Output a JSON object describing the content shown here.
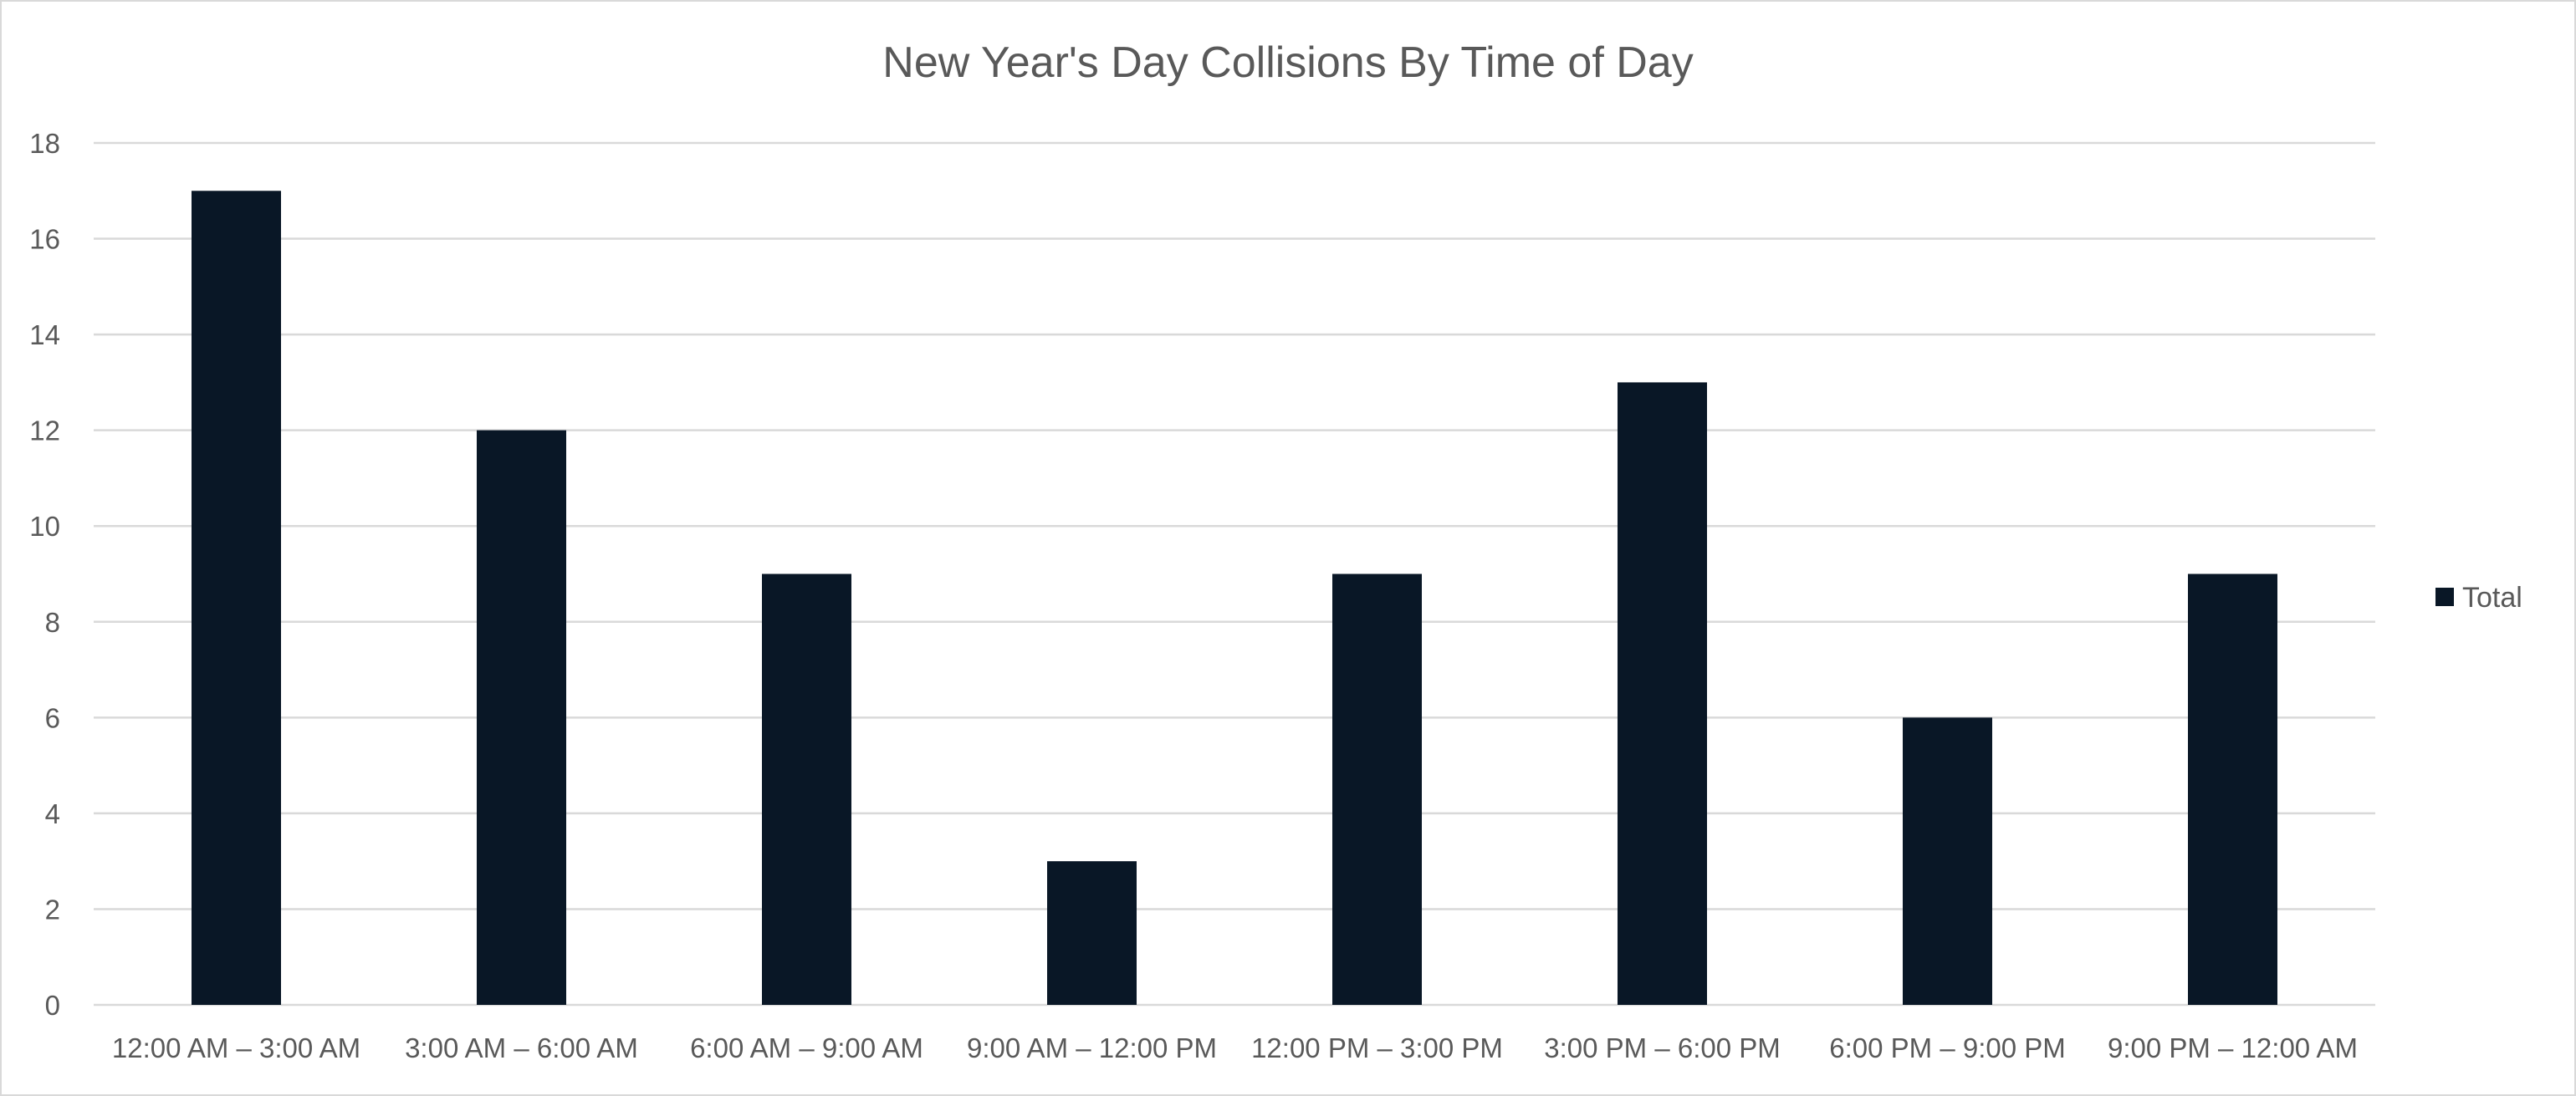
{
  "chart_data": {
    "type": "bar",
    "title": "New Year's Day Collisions By Time of Day",
    "xlabel": "",
    "ylabel": "",
    "categories": [
      "12:00 AM – 3:00 AM",
      "3:00 AM – 6:00 AM",
      "6:00 AM – 9:00 AM",
      "9:00 AM – 12:00 PM",
      "12:00 PM – 3:00 PM",
      "3:00 PM – 6:00 PM",
      "6:00 PM – 9:00 PM",
      "9:00 PM – 12:00 AM"
    ],
    "series": [
      {
        "name": "Total",
        "values": [
          17,
          12,
          9,
          3,
          9,
          13,
          6,
          9
        ],
        "color": "#091726"
      }
    ],
    "ylim": [
      0,
      18
    ],
    "yticks": [
      0,
      2,
      4,
      6,
      8,
      10,
      12,
      14,
      16,
      18
    ],
    "grid": true,
    "legend_position": "right",
    "colors": {
      "bar": "#091726",
      "gridline": "#d9d9d9",
      "text": "#595959",
      "border": "#d9d9d9"
    }
  }
}
